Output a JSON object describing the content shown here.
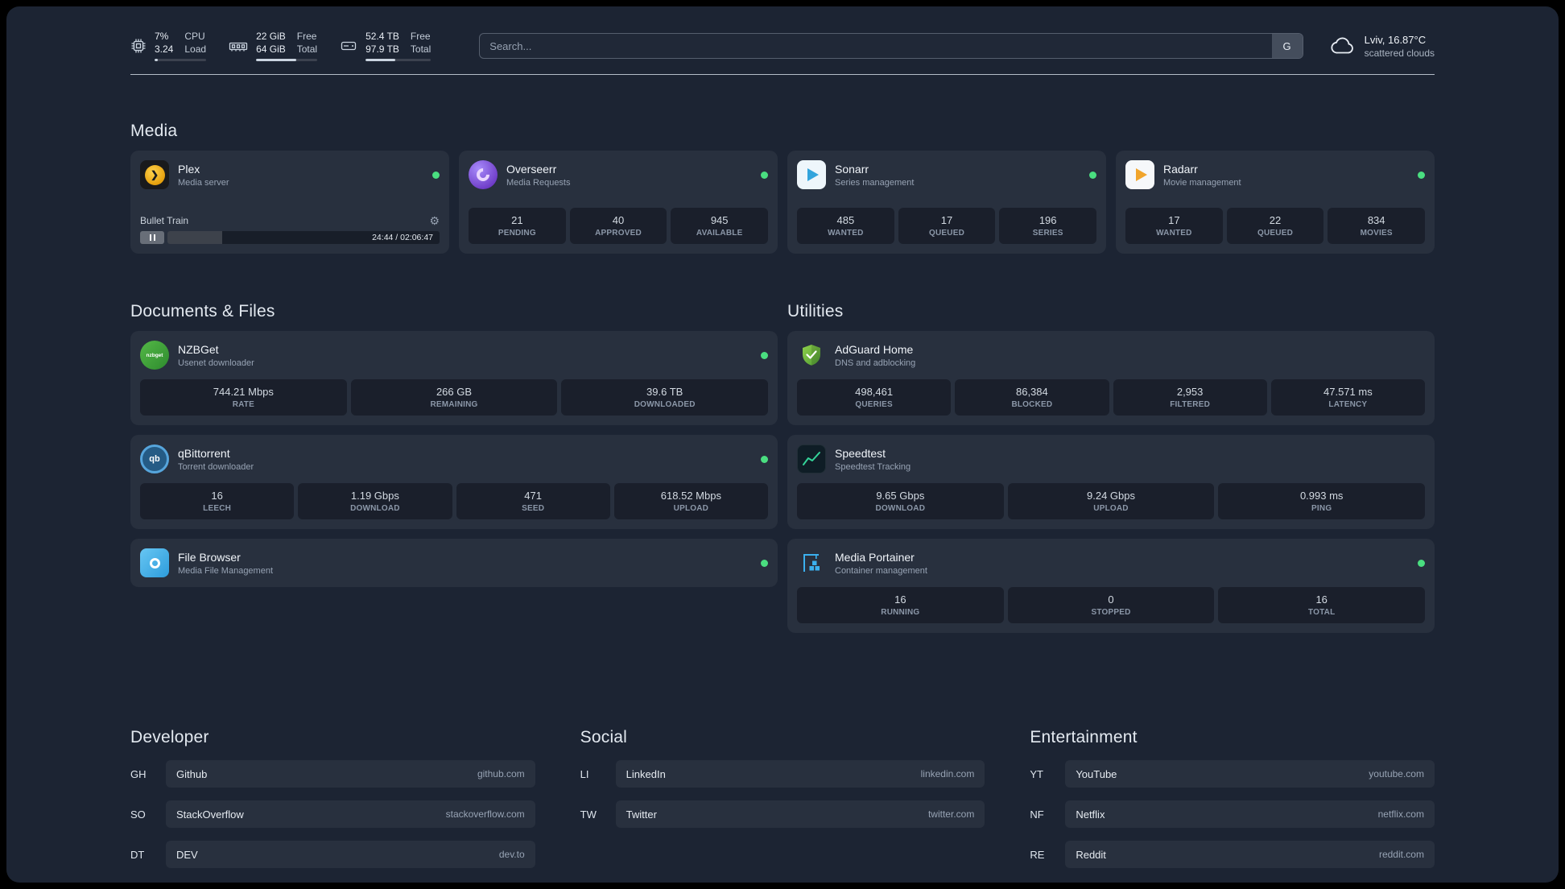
{
  "topbar": {
    "cpu": {
      "top_value": "7%",
      "bottom_value": "3.24",
      "top_label": "CPU",
      "bottom_label": "Load",
      "bar_pct": 7
    },
    "memory": {
      "top_value": "22 GiB",
      "bottom_value": "64 GiB",
      "top_label": "Free",
      "bottom_label": "Total",
      "bar_pct": 66
    },
    "disk": {
      "top_value": "52.4 TB",
      "bottom_value": "97.9 TB",
      "top_label": "Free",
      "bottom_label": "Total",
      "bar_pct": 46
    },
    "search": {
      "placeholder": "Search...",
      "provider": "G"
    },
    "weather": {
      "location": "Lviv, 16.87°C",
      "condition": "scattered clouds"
    }
  },
  "media": {
    "title": "Media",
    "plex": {
      "name": "Plex",
      "subtitle": "Media server",
      "track": "Bullet Train",
      "time": "24:44 / 02:06:47",
      "progress_pct": 20
    },
    "overseerr": {
      "name": "Overseerr",
      "subtitle": "Media Requests",
      "stats": [
        {
          "value": "21",
          "label": "PENDING"
        },
        {
          "value": "40",
          "label": "APPROVED"
        },
        {
          "value": "945",
          "label": "AVAILABLE"
        }
      ]
    },
    "sonarr": {
      "name": "Sonarr",
      "subtitle": "Series management",
      "stats": [
        {
          "value": "485",
          "label": "WANTED"
        },
        {
          "value": "17",
          "label": "QUEUED"
        },
        {
          "value": "196",
          "label": "SERIES"
        }
      ]
    },
    "radarr": {
      "name": "Radarr",
      "subtitle": "Movie management",
      "stats": [
        {
          "value": "17",
          "label": "WANTED"
        },
        {
          "value": "22",
          "label": "QUEUED"
        },
        {
          "value": "834",
          "label": "MOVIES"
        }
      ]
    }
  },
  "documents": {
    "title": "Documents & Files",
    "nzbget": {
      "name": "NZBGet",
      "subtitle": "Usenet downloader",
      "icon_text": "nzbget",
      "stats": [
        {
          "value": "744.21 Mbps",
          "label": "RATE"
        },
        {
          "value": "266 GB",
          "label": "REMAINING"
        },
        {
          "value": "39.6 TB",
          "label": "DOWNLOADED"
        }
      ]
    },
    "qbittorrent": {
      "name": "qBittorrent",
      "subtitle": "Torrent downloader",
      "icon_text": "qb",
      "stats": [
        {
          "value": "16",
          "label": "LEECH"
        },
        {
          "value": "1.19 Gbps",
          "label": "DOWNLOAD"
        },
        {
          "value": "471",
          "label": "SEED"
        },
        {
          "value": "618.52 Mbps",
          "label": "UPLOAD"
        }
      ]
    },
    "filebrowser": {
      "name": "File Browser",
      "subtitle": "Media File Management"
    }
  },
  "utilities": {
    "title": "Utilities",
    "adguard": {
      "name": "AdGuard Home",
      "subtitle": "DNS and adblocking",
      "stats": [
        {
          "value": "498,461",
          "label": "QUERIES"
        },
        {
          "value": "86,384",
          "label": "BLOCKED"
        },
        {
          "value": "2,953",
          "label": "FILTERED"
        },
        {
          "value": "47.571 ms",
          "label": "LATENCY"
        }
      ]
    },
    "speedtest": {
      "name": "Speedtest",
      "subtitle": "Speedtest Tracking",
      "stats": [
        {
          "value": "9.65 Gbps",
          "label": "DOWNLOAD"
        },
        {
          "value": "9.24 Gbps",
          "label": "UPLOAD"
        },
        {
          "value": "0.993 ms",
          "label": "PING"
        }
      ]
    },
    "portainer": {
      "name": "Media Portainer",
      "subtitle": "Container management",
      "stats": [
        {
          "value": "16",
          "label": "RUNNING"
        },
        {
          "value": "0",
          "label": "STOPPED"
        },
        {
          "value": "16",
          "label": "TOTAL"
        }
      ]
    }
  },
  "bookmarks": {
    "developer": {
      "title": "Developer",
      "items": [
        {
          "abbr": "GH",
          "name": "Github",
          "domain": "github.com"
        },
        {
          "abbr": "SO",
          "name": "StackOverflow",
          "domain": "stackoverflow.com"
        },
        {
          "abbr": "DT",
          "name": "DEV",
          "domain": "dev.to"
        }
      ]
    },
    "social": {
      "title": "Social",
      "items": [
        {
          "abbr": "LI",
          "name": "LinkedIn",
          "domain": "linkedin.com"
        },
        {
          "abbr": "TW",
          "name": "Twitter",
          "domain": "twitter.com"
        }
      ]
    },
    "entertainment": {
      "title": "Entertainment",
      "items": [
        {
          "abbr": "YT",
          "name": "YouTube",
          "domain": "youtube.com"
        },
        {
          "abbr": "NF",
          "name": "Netflix",
          "domain": "netflix.com"
        },
        {
          "abbr": "RE",
          "name": "Reddit",
          "domain": "reddit.com"
        }
      ]
    }
  },
  "colors": {
    "status_online": "#4ade80",
    "accent_green": "#34d399"
  }
}
